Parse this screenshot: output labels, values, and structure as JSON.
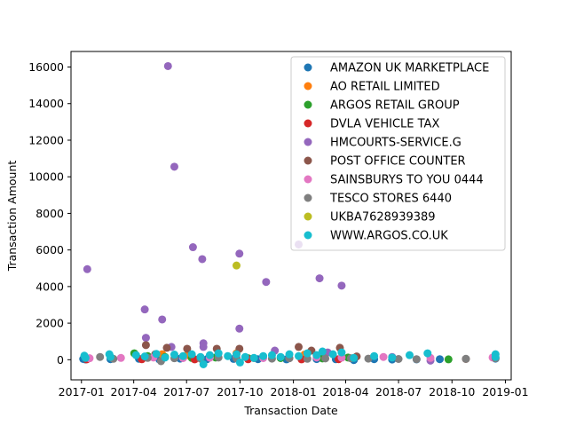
{
  "chart_data": {
    "type": "scatter",
    "title": "",
    "xlabel": "Transaction Date",
    "ylabel": "Transaction Amount",
    "xlim": [
      "2016-12-14",
      "2019-01-11"
    ],
    "ylim": [
      -1100,
      16850
    ],
    "x_ticks": [
      {
        "date": "2017-01-01",
        "label": "2017-01"
      },
      {
        "date": "2017-04-01",
        "label": "2017-04"
      },
      {
        "date": "2017-07-01",
        "label": "2017-07"
      },
      {
        "date": "2017-10-01",
        "label": "2017-10"
      },
      {
        "date": "2018-01-01",
        "label": "2018-01"
      },
      {
        "date": "2018-04-01",
        "label": "2018-04"
      },
      {
        "date": "2018-07-01",
        "label": "2018-07"
      },
      {
        "date": "2018-10-01",
        "label": "2018-10"
      },
      {
        "date": "2019-01-01",
        "label": "2019-01"
      }
    ],
    "y_ticks": [
      0,
      2000,
      4000,
      6000,
      8000,
      10000,
      12000,
      14000,
      16000
    ],
    "legend_position": "top-right",
    "grid": false,
    "series": [
      {
        "name": "AMAZON UK MARKETPLACE",
        "color": "#1f77b4",
        "points": [
          [
            "2017-01-04",
            40
          ],
          [
            "2017-01-08",
            15
          ],
          [
            "2017-02-20",
            30
          ],
          [
            "2017-04-10",
            50
          ],
          [
            "2017-05-15",
            20
          ],
          [
            "2017-06-20",
            60
          ],
          [
            "2017-08-05",
            25
          ],
          [
            "2017-09-20",
            45
          ],
          [
            "2017-11-01",
            30
          ],
          [
            "2017-12-20",
            20
          ],
          [
            "2018-02-10",
            35
          ],
          [
            "2018-03-15",
            25
          ],
          [
            "2018-04-15",
            -20
          ],
          [
            "2018-05-20",
            30
          ],
          [
            "2018-06-20",
            10
          ],
          [
            "2018-08-01",
            20
          ],
          [
            "2018-09-10",
            30
          ],
          [
            "2018-12-15",
            60
          ]
        ]
      },
      {
        "name": "AO RETAIL LIMITED",
        "color": "#ff7f0e",
        "points": [
          [
            "2017-05-20",
            300
          ],
          [
            "2017-07-02",
            250
          ],
          [
            "2017-09-25",
            350
          ],
          [
            "2018-01-20",
            280
          ]
        ]
      },
      {
        "name": "ARGOS RETAIL GROUP",
        "color": "#2ca02c",
        "points": [
          [
            "2017-04-02",
            350
          ],
          [
            "2017-04-25",
            200
          ],
          [
            "2017-05-25",
            150
          ],
          [
            "2017-07-10",
            100
          ],
          [
            "2017-08-20",
            120
          ],
          [
            "2017-10-15",
            80
          ],
          [
            "2017-12-10",
            90
          ],
          [
            "2018-02-20",
            70
          ],
          [
            "2018-04-05",
            120
          ],
          [
            "2018-09-25",
            20
          ]
        ]
      },
      {
        "name": "DVLA VEHICLE TAX",
        "color": "#d62728",
        "points": [
          [
            "2017-01-10",
            20
          ],
          [
            "2017-04-15",
            25
          ],
          [
            "2017-07-15",
            20
          ],
          [
            "2017-10-15",
            25
          ],
          [
            "2018-01-15",
            20
          ],
          [
            "2018-03-20",
            30
          ]
        ]
      },
      {
        "name": "HMCOURTS-SERVICE.G",
        "color": "#9467bd",
        "points": [
          [
            "2017-01-11",
            4950
          ],
          [
            "2017-04-20",
            2750
          ],
          [
            "2017-04-22",
            1200
          ],
          [
            "2017-05-20",
            2200
          ],
          [
            "2017-05-30",
            16050
          ],
          [
            "2017-06-10",
            10550
          ],
          [
            "2017-06-05",
            700
          ],
          [
            "2017-07-12",
            6150
          ],
          [
            "2017-07-28",
            5500
          ],
          [
            "2017-07-30",
            900
          ],
          [
            "2017-07-30",
            700
          ],
          [
            "2017-09-30",
            5800
          ],
          [
            "2017-09-30",
            1700
          ],
          [
            "2017-11-15",
            4250
          ],
          [
            "2018-01-10",
            6300
          ],
          [
            "2018-02-15",
            4450
          ],
          [
            "2018-03-25",
            4050
          ],
          [
            "2017-11-30",
            500
          ],
          [
            "2018-03-01",
            400
          ],
          [
            "2018-06-20",
            150
          ],
          [
            "2018-08-25",
            -50
          ]
        ]
      },
      {
        "name": "POST OFFICE COUNTER",
        "color": "#8c564b",
        "points": [
          [
            "2017-04-22",
            800
          ],
          [
            "2017-05-08",
            300
          ],
          [
            "2017-05-28",
            650
          ],
          [
            "2017-07-02",
            600
          ],
          [
            "2017-08-22",
            600
          ],
          [
            "2017-09-30",
            600
          ],
          [
            "2018-01-10",
            700
          ],
          [
            "2018-02-01",
            500
          ],
          [
            "2018-03-22",
            650
          ],
          [
            "2018-04-20",
            180
          ],
          [
            "2018-10-25",
            40
          ]
        ]
      },
      {
        "name": "SAINSBURYS TO YOU 0444",
        "color": "#e377c2",
        "points": [
          [
            "2017-01-15",
            80
          ],
          [
            "2017-03-10",
            100
          ],
          [
            "2017-05-05",
            120
          ],
          [
            "2017-06-25",
            90
          ],
          [
            "2017-08-10",
            110
          ],
          [
            "2017-09-25",
            130
          ],
          [
            "2017-11-10",
            90
          ],
          [
            "2017-12-25",
            100
          ],
          [
            "2018-02-10",
            120
          ],
          [
            "2018-03-25",
            110
          ],
          [
            "2018-06-05",
            150
          ],
          [
            "2018-08-25",
            100
          ],
          [
            "2018-12-10",
            120
          ]
        ]
      },
      {
        "name": "TESCO STORES 6440",
        "color": "#7f7f7f",
        "points": [
          [
            "2017-02-02",
            150
          ],
          [
            "2017-02-25",
            50
          ],
          [
            "2017-04-25",
            100
          ],
          [
            "2017-05-18",
            -80
          ],
          [
            "2017-06-10",
            80
          ],
          [
            "2017-07-25",
            60
          ],
          [
            "2017-08-25",
            120
          ],
          [
            "2017-09-25",
            70
          ],
          [
            "2017-10-25",
            90
          ],
          [
            "2017-11-25",
            60
          ],
          [
            "2017-12-25",
            80
          ],
          [
            "2018-01-25",
            50
          ],
          [
            "2018-02-25",
            70
          ],
          [
            "2018-04-10",
            80
          ],
          [
            "2018-05-10",
            60
          ],
          [
            "2018-07-01",
            40
          ],
          [
            "2018-08-01",
            30
          ],
          [
            "2018-10-25",
            50
          ],
          [
            "2018-12-15",
            80
          ]
        ]
      },
      {
        "name": "UKBA7628939389",
        "color": "#bcbd22",
        "points": [
          [
            "2017-09-25",
            5150
          ]
        ]
      },
      {
        "name": "WWW.ARGOS.CO.UK",
        "color": "#17becf",
        "points": [
          [
            "2017-01-06",
            220
          ],
          [
            "2017-01-08",
            100
          ],
          [
            "2017-02-18",
            300
          ],
          [
            "2017-02-20",
            150
          ],
          [
            "2017-04-05",
            250
          ],
          [
            "2017-04-20",
            180
          ],
          [
            "2017-05-10",
            320
          ],
          [
            "2017-05-25",
            120
          ],
          [
            "2017-06-10",
            280
          ],
          [
            "2017-06-25",
            200
          ],
          [
            "2017-07-10",
            300
          ],
          [
            "2017-07-25",
            150
          ],
          [
            "2017-07-30",
            -250
          ],
          [
            "2017-08-10",
            250
          ],
          [
            "2017-08-25",
            350
          ],
          [
            "2017-09-10",
            200
          ],
          [
            "2017-09-25",
            300
          ],
          [
            "2017-10-01",
            -150
          ],
          [
            "2017-10-10",
            150
          ],
          [
            "2017-10-25",
            100
          ],
          [
            "2017-11-10",
            200
          ],
          [
            "2017-11-25",
            250
          ],
          [
            "2017-12-10",
            150
          ],
          [
            "2017-12-25",
            300
          ],
          [
            "2018-01-10",
            200
          ],
          [
            "2018-01-25",
            350
          ],
          [
            "2018-02-10",
            250
          ],
          [
            "2018-02-20",
            450
          ],
          [
            "2018-03-10",
            300
          ],
          [
            "2018-03-25",
            400
          ],
          [
            "2018-04-15",
            100
          ],
          [
            "2018-05-20",
            200
          ],
          [
            "2018-06-20",
            120
          ],
          [
            "2018-07-20",
            250
          ],
          [
            "2018-08-20",
            350
          ],
          [
            "2018-12-15",
            300
          ],
          [
            "2018-12-15",
            150
          ]
        ]
      }
    ]
  }
}
